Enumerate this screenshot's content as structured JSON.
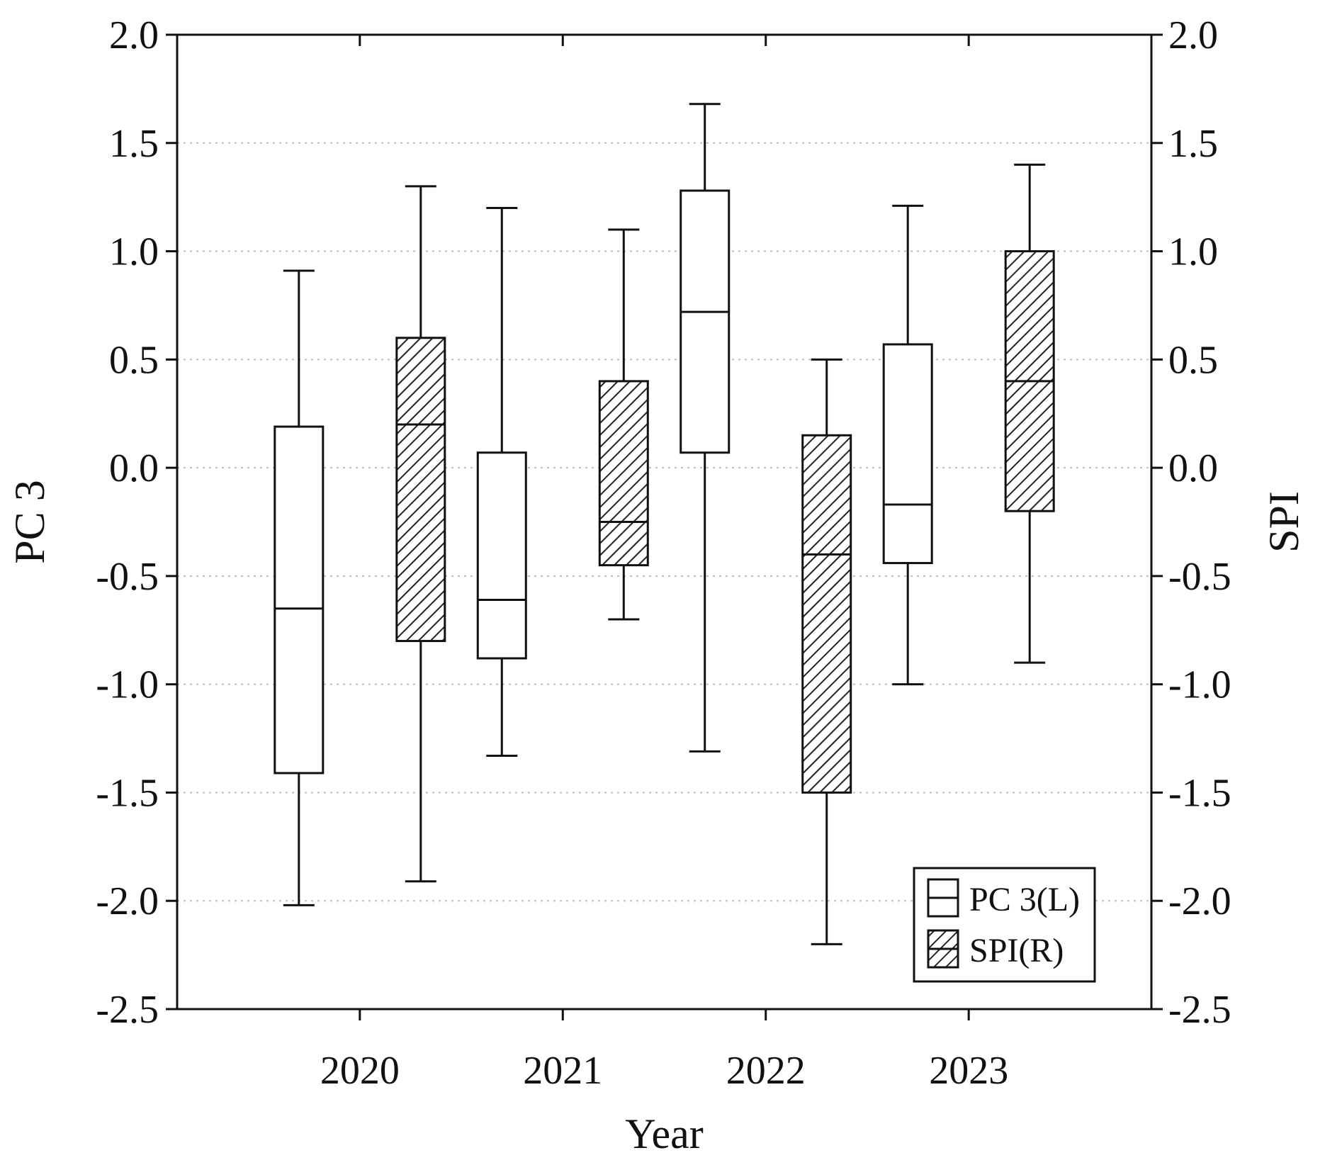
{
  "chart_data": {
    "type": "boxplot",
    "categories": [
      "2020",
      "2021",
      "2022",
      "2023"
    ],
    "xlabel": "Year",
    "ylabel_left": "PC 3",
    "ylabel_right": "SPI",
    "ylim": [
      -2.5,
      2.0
    ],
    "yticks": [
      "2.0",
      "1.5",
      "1.0",
      "0.5",
      "0.0",
      "-0.5",
      "-1.0",
      "-1.5",
      "-2.0",
      "-2.5"
    ],
    "grid": "horizontal dotted",
    "legend_position": "bottom-right",
    "series": [
      {
        "name": "PC 3(L)",
        "axis": "left",
        "fill": "white",
        "boxes": [
          {
            "year": "2020",
            "min": -2.02,
            "q1": -1.41,
            "median": -0.65,
            "q3": 0.19,
            "max": 0.91
          },
          {
            "year": "2021",
            "min": -1.33,
            "q1": -0.88,
            "median": -0.61,
            "q3": 0.07,
            "max": 1.2
          },
          {
            "year": "2022",
            "min": -1.31,
            "q1": 0.07,
            "median": 0.72,
            "q3": 1.28,
            "max": 1.68
          },
          {
            "year": "2023",
            "min": -1.0,
            "q1": -0.44,
            "median": -0.17,
            "q3": 0.57,
            "max": 1.21
          }
        ]
      },
      {
        "name": "SPI(R)",
        "axis": "right",
        "fill": "hatched",
        "boxes": [
          {
            "year": "2020",
            "min": -1.91,
            "q1": -0.8,
            "median": 0.2,
            "q3": 0.6,
            "max": 1.3
          },
          {
            "year": "2021",
            "min": -0.7,
            "q1": -0.45,
            "median": -0.25,
            "q3": 0.4,
            "max": 1.1
          },
          {
            "year": "2022",
            "min": -2.2,
            "q1": -1.5,
            "median": -0.4,
            "q3": 0.15,
            "max": 0.5
          },
          {
            "year": "2023",
            "min": -0.9,
            "q1": -0.2,
            "median": 0.4,
            "q3": 1.0,
            "max": 1.4
          }
        ]
      }
    ]
  }
}
